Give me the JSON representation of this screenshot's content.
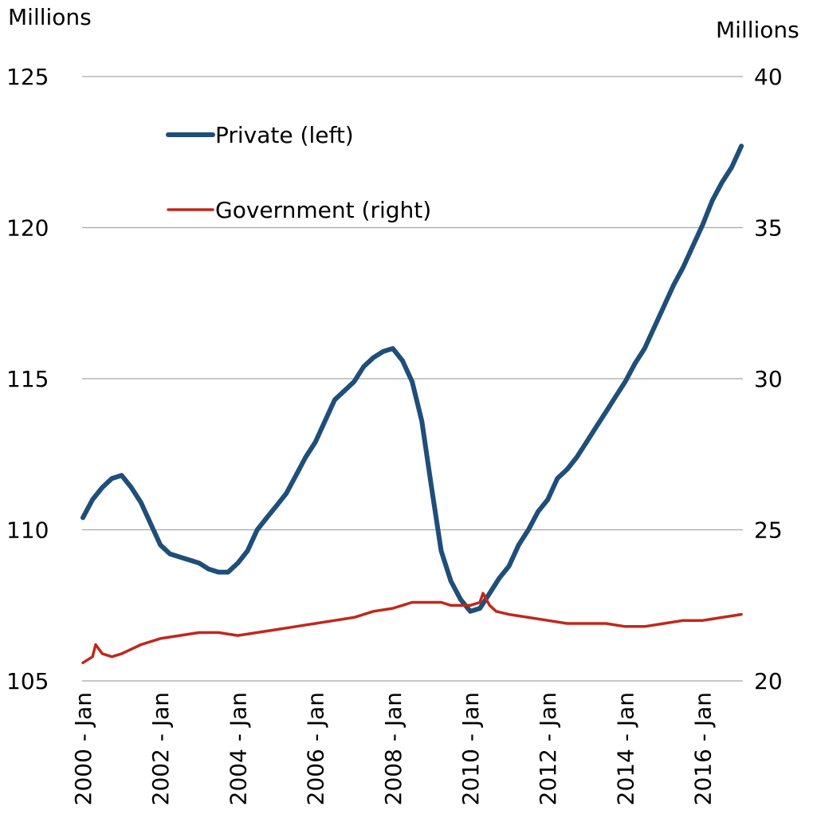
{
  "chart_data": {
    "type": "line",
    "title": "",
    "left_axis_unit": "Millions",
    "right_axis_unit": "Millions",
    "ylim_left": [
      105,
      125
    ],
    "ylim_right": [
      20,
      40
    ],
    "yticks_left": [
      "105",
      "110",
      "115",
      "120",
      "125"
    ],
    "yticks_right": [
      "20",
      "25",
      "30",
      "35",
      "40"
    ],
    "xlim": [
      2000.0,
      2016.75
    ],
    "xticks": [
      "2000 - Jan",
      "2002 - Jan",
      "2004 - Jan",
      "2006 - Jan",
      "2008 - Jan",
      "2010 - Jan",
      "2012 - Jan",
      "2014 - Jan",
      "2016 - Jan"
    ],
    "grid": "horizontal",
    "legend_position": "top-left inside",
    "colors": {
      "private": "#1f4e79",
      "government": "#c0281c",
      "grid": "#a6a6a6"
    },
    "series": [
      {
        "name": "Private (left)",
        "axis": "left",
        "color": "#1f4e79",
        "points": [
          [
            2000.0,
            110.4
          ],
          [
            2000.25,
            111.0
          ],
          [
            2000.5,
            111.4
          ],
          [
            2000.75,
            111.7
          ],
          [
            2001.0,
            111.8
          ],
          [
            2001.25,
            111.4
          ],
          [
            2001.5,
            110.9
          ],
          [
            2001.75,
            110.2
          ],
          [
            2002.0,
            109.5
          ],
          [
            2002.25,
            109.2
          ],
          [
            2002.5,
            109.1
          ],
          [
            2002.75,
            109.0
          ],
          [
            2003.0,
            108.9
          ],
          [
            2003.25,
            108.7
          ],
          [
            2003.5,
            108.6
          ],
          [
            2003.75,
            108.6
          ],
          [
            2004.0,
            108.9
          ],
          [
            2004.25,
            109.3
          ],
          [
            2004.5,
            110.0
          ],
          [
            2004.75,
            110.4
          ],
          [
            2005.0,
            110.8
          ],
          [
            2005.25,
            111.2
          ],
          [
            2005.5,
            111.8
          ],
          [
            2005.75,
            112.4
          ],
          [
            2006.0,
            112.9
          ],
          [
            2006.25,
            113.6
          ],
          [
            2006.5,
            114.3
          ],
          [
            2006.75,
            114.6
          ],
          [
            2007.0,
            114.9
          ],
          [
            2007.25,
            115.4
          ],
          [
            2007.5,
            115.7
          ],
          [
            2007.75,
            115.9
          ],
          [
            2008.0,
            116.0
          ],
          [
            2008.25,
            115.6
          ],
          [
            2008.5,
            114.9
          ],
          [
            2008.75,
            113.6
          ],
          [
            2009.0,
            111.4
          ],
          [
            2009.25,
            109.3
          ],
          [
            2009.5,
            108.3
          ],
          [
            2009.75,
            107.7
          ],
          [
            2010.0,
            107.3
          ],
          [
            2010.25,
            107.4
          ],
          [
            2010.5,
            107.9
          ],
          [
            2010.75,
            108.4
          ],
          [
            2011.0,
            108.8
          ],
          [
            2011.25,
            109.5
          ],
          [
            2011.5,
            110.0
          ],
          [
            2011.75,
            110.6
          ],
          [
            2012.0,
            111.0
          ],
          [
            2012.25,
            111.7
          ],
          [
            2012.5,
            112.0
          ],
          [
            2012.75,
            112.4
          ],
          [
            2013.0,
            112.9
          ],
          [
            2013.25,
            113.4
          ],
          [
            2013.5,
            113.9
          ],
          [
            2013.75,
            114.4
          ],
          [
            2014.0,
            114.9
          ],
          [
            2014.25,
            115.5
          ],
          [
            2014.5,
            116.0
          ],
          [
            2014.75,
            116.7
          ],
          [
            2015.0,
            117.4
          ],
          [
            2015.25,
            118.1
          ],
          [
            2015.5,
            118.7
          ],
          [
            2015.75,
            119.4
          ],
          [
            2016.0,
            120.1
          ],
          [
            2016.25,
            120.9
          ],
          [
            2016.5,
            121.5
          ],
          [
            2016.75,
            122.0
          ],
          [
            2017.0,
            122.7
          ]
        ]
      },
      {
        "name": "Government (right)",
        "axis": "right",
        "color": "#c0281c",
        "points": [
          [
            2000.0,
            20.6
          ],
          [
            2000.25,
            20.8
          ],
          [
            2000.33,
            21.2
          ],
          [
            2000.5,
            20.9
          ],
          [
            2000.75,
            20.8
          ],
          [
            2001.0,
            20.9
          ],
          [
            2001.5,
            21.2
          ],
          [
            2002.0,
            21.4
          ],
          [
            2002.5,
            21.5
          ],
          [
            2003.0,
            21.6
          ],
          [
            2003.5,
            21.6
          ],
          [
            2004.0,
            21.5
          ],
          [
            2004.5,
            21.6
          ],
          [
            2005.0,
            21.7
          ],
          [
            2005.5,
            21.8
          ],
          [
            2006.0,
            21.9
          ],
          [
            2006.5,
            22.0
          ],
          [
            2007.0,
            22.1
          ],
          [
            2007.5,
            22.3
          ],
          [
            2008.0,
            22.4
          ],
          [
            2008.5,
            22.6
          ],
          [
            2009.0,
            22.6
          ],
          [
            2009.25,
            22.6
          ],
          [
            2009.5,
            22.5
          ],
          [
            2010.0,
            22.5
          ],
          [
            2010.25,
            22.6
          ],
          [
            2010.33,
            22.9
          ],
          [
            2010.5,
            22.5
          ],
          [
            2010.67,
            22.3
          ],
          [
            2011.0,
            22.2
          ],
          [
            2011.5,
            22.1
          ],
          [
            2012.0,
            22.0
          ],
          [
            2012.5,
            21.9
          ],
          [
            2013.0,
            21.9
          ],
          [
            2013.5,
            21.9
          ],
          [
            2014.0,
            21.8
          ],
          [
            2014.5,
            21.8
          ],
          [
            2015.0,
            21.9
          ],
          [
            2015.5,
            22.0
          ],
          [
            2016.0,
            22.0
          ],
          [
            2016.5,
            22.1
          ],
          [
            2017.0,
            22.2
          ]
        ]
      }
    ]
  }
}
